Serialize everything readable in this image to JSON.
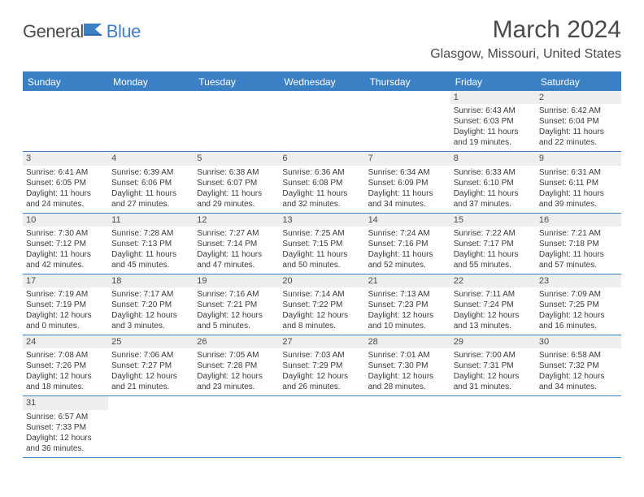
{
  "brand": {
    "part1": "General",
    "part2": "Blue"
  },
  "title": "March 2024",
  "location": "Glasgow, Missouri, United States",
  "colors": {
    "header_bg": "#3b7fc4",
    "header_text": "#ffffff",
    "cell_border": "#3b7fc4",
    "daynum_bg": "#eceeef",
    "text": "#3a3a3a",
    "title_text": "#4a4a4a"
  },
  "day_names": [
    "Sunday",
    "Monday",
    "Tuesday",
    "Wednesday",
    "Thursday",
    "Friday",
    "Saturday"
  ],
  "weeks": [
    [
      {
        "blank": true
      },
      {
        "blank": true
      },
      {
        "blank": true
      },
      {
        "blank": true
      },
      {
        "blank": true
      },
      {
        "day": "1",
        "sunrise": "Sunrise: 6:43 AM",
        "sunset": "Sunset: 6:03 PM",
        "dl1": "Daylight: 11 hours",
        "dl2": "and 19 minutes."
      },
      {
        "day": "2",
        "sunrise": "Sunrise: 6:42 AM",
        "sunset": "Sunset: 6:04 PM",
        "dl1": "Daylight: 11 hours",
        "dl2": "and 22 minutes."
      }
    ],
    [
      {
        "day": "3",
        "sunrise": "Sunrise: 6:41 AM",
        "sunset": "Sunset: 6:05 PM",
        "dl1": "Daylight: 11 hours",
        "dl2": "and 24 minutes."
      },
      {
        "day": "4",
        "sunrise": "Sunrise: 6:39 AM",
        "sunset": "Sunset: 6:06 PM",
        "dl1": "Daylight: 11 hours",
        "dl2": "and 27 minutes."
      },
      {
        "day": "5",
        "sunrise": "Sunrise: 6:38 AM",
        "sunset": "Sunset: 6:07 PM",
        "dl1": "Daylight: 11 hours",
        "dl2": "and 29 minutes."
      },
      {
        "day": "6",
        "sunrise": "Sunrise: 6:36 AM",
        "sunset": "Sunset: 6:08 PM",
        "dl1": "Daylight: 11 hours",
        "dl2": "and 32 minutes."
      },
      {
        "day": "7",
        "sunrise": "Sunrise: 6:34 AM",
        "sunset": "Sunset: 6:09 PM",
        "dl1": "Daylight: 11 hours",
        "dl2": "and 34 minutes."
      },
      {
        "day": "8",
        "sunrise": "Sunrise: 6:33 AM",
        "sunset": "Sunset: 6:10 PM",
        "dl1": "Daylight: 11 hours",
        "dl2": "and 37 minutes."
      },
      {
        "day": "9",
        "sunrise": "Sunrise: 6:31 AM",
        "sunset": "Sunset: 6:11 PM",
        "dl1": "Daylight: 11 hours",
        "dl2": "and 39 minutes."
      }
    ],
    [
      {
        "day": "10",
        "sunrise": "Sunrise: 7:30 AM",
        "sunset": "Sunset: 7:12 PM",
        "dl1": "Daylight: 11 hours",
        "dl2": "and 42 minutes."
      },
      {
        "day": "11",
        "sunrise": "Sunrise: 7:28 AM",
        "sunset": "Sunset: 7:13 PM",
        "dl1": "Daylight: 11 hours",
        "dl2": "and 45 minutes."
      },
      {
        "day": "12",
        "sunrise": "Sunrise: 7:27 AM",
        "sunset": "Sunset: 7:14 PM",
        "dl1": "Daylight: 11 hours",
        "dl2": "and 47 minutes."
      },
      {
        "day": "13",
        "sunrise": "Sunrise: 7:25 AM",
        "sunset": "Sunset: 7:15 PM",
        "dl1": "Daylight: 11 hours",
        "dl2": "and 50 minutes."
      },
      {
        "day": "14",
        "sunrise": "Sunrise: 7:24 AM",
        "sunset": "Sunset: 7:16 PM",
        "dl1": "Daylight: 11 hours",
        "dl2": "and 52 minutes."
      },
      {
        "day": "15",
        "sunrise": "Sunrise: 7:22 AM",
        "sunset": "Sunset: 7:17 PM",
        "dl1": "Daylight: 11 hours",
        "dl2": "and 55 minutes."
      },
      {
        "day": "16",
        "sunrise": "Sunrise: 7:21 AM",
        "sunset": "Sunset: 7:18 PM",
        "dl1": "Daylight: 11 hours",
        "dl2": "and 57 minutes."
      }
    ],
    [
      {
        "day": "17",
        "sunrise": "Sunrise: 7:19 AM",
        "sunset": "Sunset: 7:19 PM",
        "dl1": "Daylight: 12 hours",
        "dl2": "and 0 minutes."
      },
      {
        "day": "18",
        "sunrise": "Sunrise: 7:17 AM",
        "sunset": "Sunset: 7:20 PM",
        "dl1": "Daylight: 12 hours",
        "dl2": "and 3 minutes."
      },
      {
        "day": "19",
        "sunrise": "Sunrise: 7:16 AM",
        "sunset": "Sunset: 7:21 PM",
        "dl1": "Daylight: 12 hours",
        "dl2": "and 5 minutes."
      },
      {
        "day": "20",
        "sunrise": "Sunrise: 7:14 AM",
        "sunset": "Sunset: 7:22 PM",
        "dl1": "Daylight: 12 hours",
        "dl2": "and 8 minutes."
      },
      {
        "day": "21",
        "sunrise": "Sunrise: 7:13 AM",
        "sunset": "Sunset: 7:23 PM",
        "dl1": "Daylight: 12 hours",
        "dl2": "and 10 minutes."
      },
      {
        "day": "22",
        "sunrise": "Sunrise: 7:11 AM",
        "sunset": "Sunset: 7:24 PM",
        "dl1": "Daylight: 12 hours",
        "dl2": "and 13 minutes."
      },
      {
        "day": "23",
        "sunrise": "Sunrise: 7:09 AM",
        "sunset": "Sunset: 7:25 PM",
        "dl1": "Daylight: 12 hours",
        "dl2": "and 16 minutes."
      }
    ],
    [
      {
        "day": "24",
        "sunrise": "Sunrise: 7:08 AM",
        "sunset": "Sunset: 7:26 PM",
        "dl1": "Daylight: 12 hours",
        "dl2": "and 18 minutes."
      },
      {
        "day": "25",
        "sunrise": "Sunrise: 7:06 AM",
        "sunset": "Sunset: 7:27 PM",
        "dl1": "Daylight: 12 hours",
        "dl2": "and 21 minutes."
      },
      {
        "day": "26",
        "sunrise": "Sunrise: 7:05 AM",
        "sunset": "Sunset: 7:28 PM",
        "dl1": "Daylight: 12 hours",
        "dl2": "and 23 minutes."
      },
      {
        "day": "27",
        "sunrise": "Sunrise: 7:03 AM",
        "sunset": "Sunset: 7:29 PM",
        "dl1": "Daylight: 12 hours",
        "dl2": "and 26 minutes."
      },
      {
        "day": "28",
        "sunrise": "Sunrise: 7:01 AM",
        "sunset": "Sunset: 7:30 PM",
        "dl1": "Daylight: 12 hours",
        "dl2": "and 28 minutes."
      },
      {
        "day": "29",
        "sunrise": "Sunrise: 7:00 AM",
        "sunset": "Sunset: 7:31 PM",
        "dl1": "Daylight: 12 hours",
        "dl2": "and 31 minutes."
      },
      {
        "day": "30",
        "sunrise": "Sunrise: 6:58 AM",
        "sunset": "Sunset: 7:32 PM",
        "dl1": "Daylight: 12 hours",
        "dl2": "and 34 minutes."
      }
    ],
    [
      {
        "day": "31",
        "sunrise": "Sunrise: 6:57 AM",
        "sunset": "Sunset: 7:33 PM",
        "dl1": "Daylight: 12 hours",
        "dl2": "and 36 minutes."
      },
      {
        "blank": true
      },
      {
        "blank": true
      },
      {
        "blank": true
      },
      {
        "blank": true
      },
      {
        "blank": true
      },
      {
        "blank": true
      }
    ]
  ]
}
